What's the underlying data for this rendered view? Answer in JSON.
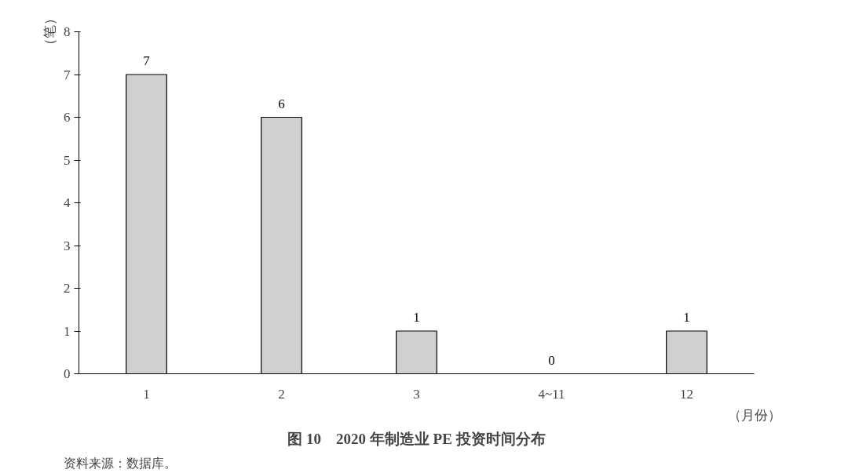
{
  "chart_data": {
    "type": "bar",
    "title": "图 10　2020 年制造业 PE 投资时间分布",
    "ylabel": "（笔）",
    "xlabel": "（月份）",
    "annotations": [
      "资料来源：数据库。"
    ],
    "categories": [
      "1",
      "2",
      "3",
      "4~11",
      "12"
    ],
    "values": [
      7,
      6,
      1,
      0,
      1
    ],
    "color": "#d0d0d0",
    "ylim": [
      0,
      8
    ],
    "yticks": [
      0,
      1,
      2,
      3,
      4,
      5,
      6,
      7,
      8
    ],
    "grid": false,
    "data_labels": true
  }
}
